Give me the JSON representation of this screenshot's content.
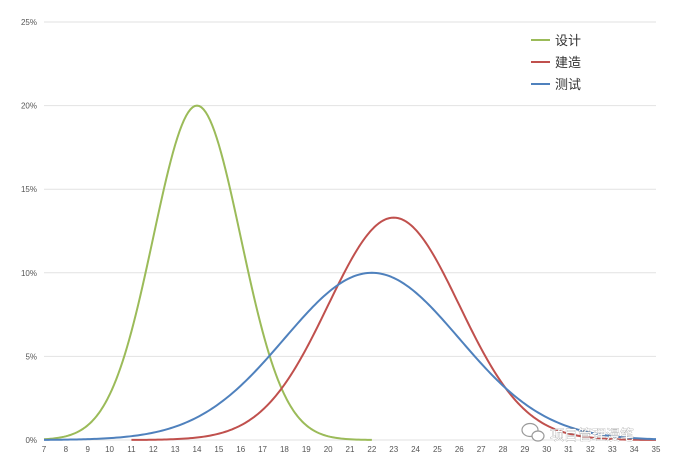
{
  "chart_data": {
    "type": "line",
    "title": "",
    "xlabel": "",
    "ylabel": "",
    "x_ticks": [
      "7",
      "8",
      "9",
      "10",
      "11",
      "12",
      "13",
      "14",
      "15",
      "16",
      "17",
      "18",
      "19",
      "20",
      "21",
      "22",
      "23",
      "24",
      "25",
      "26",
      "27",
      "28",
      "29",
      "30",
      "31",
      "32",
      "33",
      "34",
      "35"
    ],
    "y_ticks": [
      "0%",
      "5%",
      "10%",
      "15%",
      "20%",
      "25%"
    ],
    "xlim": [
      7,
      35
    ],
    "ylim": [
      0,
      25
    ],
    "grid": "horizontal",
    "legend_position": "top-right",
    "series": [
      {
        "name": "设计",
        "color": "#9bbb59",
        "distribution": "normal",
        "mean": 14,
        "std_dev": 2,
        "x_range": [
          7,
          22
        ],
        "points": [
          [
            7,
            0.05
          ],
          [
            9,
            0.9
          ],
          [
            11,
            6.5
          ],
          [
            12,
            12.1
          ],
          [
            13,
            17.6
          ],
          [
            14,
            20
          ],
          [
            15,
            17.6
          ],
          [
            16,
            12.1
          ],
          [
            17,
            6.5
          ],
          [
            19,
            0.9
          ],
          [
            22,
            0.01
          ]
        ]
      },
      {
        "name": "建造",
        "color": "#c0504d",
        "distribution": "normal",
        "mean": 23,
        "std_dev": 3,
        "x_range": [
          11,
          35
        ],
        "points": [
          [
            11,
            0.0
          ],
          [
            15,
            0.4
          ],
          [
            17,
            1.8
          ],
          [
            19,
            5.4
          ],
          [
            21,
            10.7
          ],
          [
            23,
            13.3
          ],
          [
            25,
            10.7
          ],
          [
            27,
            5.4
          ],
          [
            29,
            1.8
          ],
          [
            31,
            0.4
          ],
          [
            35,
            0.0
          ]
        ]
      },
      {
        "name": "测试",
        "color": "#4f81bd",
        "distribution": "normal",
        "mean": 22,
        "std_dev": 4,
        "x_range": [
          7,
          35
        ],
        "points": [
          [
            7,
            0.1
          ],
          [
            10,
            0.4
          ],
          [
            14,
            1.4
          ],
          [
            17,
            4.6
          ],
          [
            20,
            8.8
          ],
          [
            22,
            10
          ],
          [
            24,
            8.8
          ],
          [
            27,
            4.6
          ],
          [
            30,
            1.4
          ],
          [
            33,
            0.2
          ],
          [
            35,
            0.05
          ]
        ]
      }
    ]
  },
  "watermark": {
    "text": "项目管理漫笔",
    "icon": "wechat-bubble-icon"
  }
}
